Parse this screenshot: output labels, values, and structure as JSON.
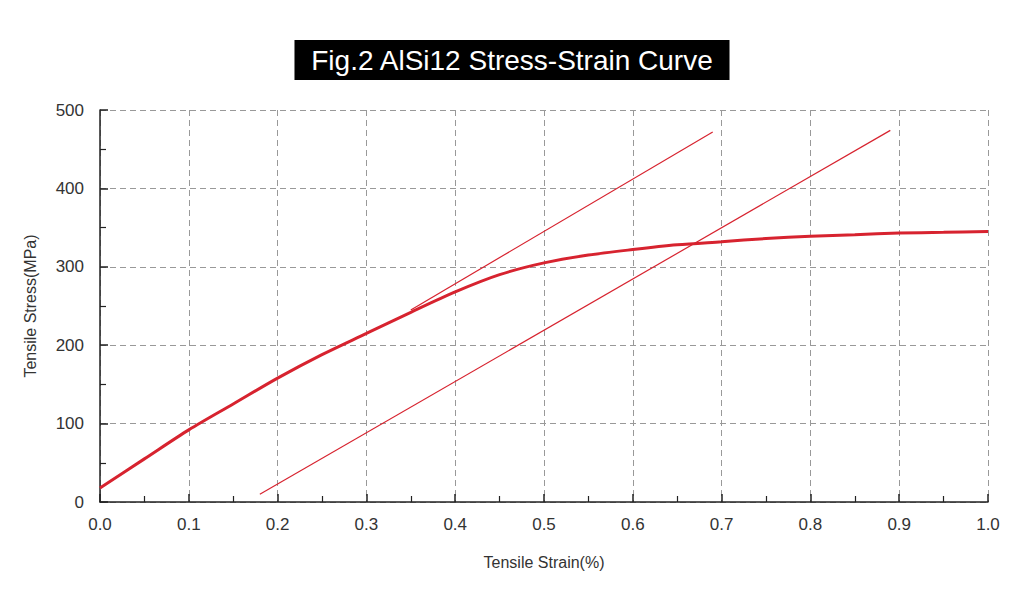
{
  "chart_data": {
    "type": "line",
    "title": "Fig.2 AlSi12 Stress-Strain Curve",
    "x_label": "Tensile Strain(%)",
    "y_label": "Tensile Stress(MPa)",
    "xlim": [
      0,
      1
    ],
    "xticks": [
      {
        "value": 0,
        "label": "0.0"
      },
      0.1,
      0.2,
      0.3,
      0.4,
      0.5,
      0.6,
      0.7,
      0.8,
      0.9,
      {
        "value": 1,
        "label": "1.0"
      }
    ],
    "ylim": [
      0,
      500
    ],
    "yticks": [
      0,
      100,
      200,
      300,
      400,
      500
    ],
    "grid": true,
    "series": [
      {
        "color": "#d7232f",
        "line_style": "thick",
        "x": [
          0,
          0.05,
          0.1,
          0.15,
          0.2,
          0.25,
          0.3,
          0.35,
          0.4,
          0.45,
          0.5,
          0.55,
          0.6,
          0.65,
          0.7,
          0.75,
          0.8,
          0.85,
          0.9,
          0.95,
          1
        ],
        "values": [
          18,
          55,
          92,
          125,
          158,
          188,
          215,
          242,
          268,
          290,
          305,
          315,
          322,
          328,
          332,
          336,
          339,
          341,
          343,
          344,
          345
        ]
      },
      {
        "color": "#d7232f",
        "line_style": "thin",
        "x": [
          0.35,
          0.69
        ],
        "values": [
          245,
          472
        ]
      },
      {
        "color": "#d7232f",
        "line_style": "thin",
        "x": [
          0.18,
          0.89
        ],
        "values": [
          10,
          474
        ]
      }
    ]
  }
}
